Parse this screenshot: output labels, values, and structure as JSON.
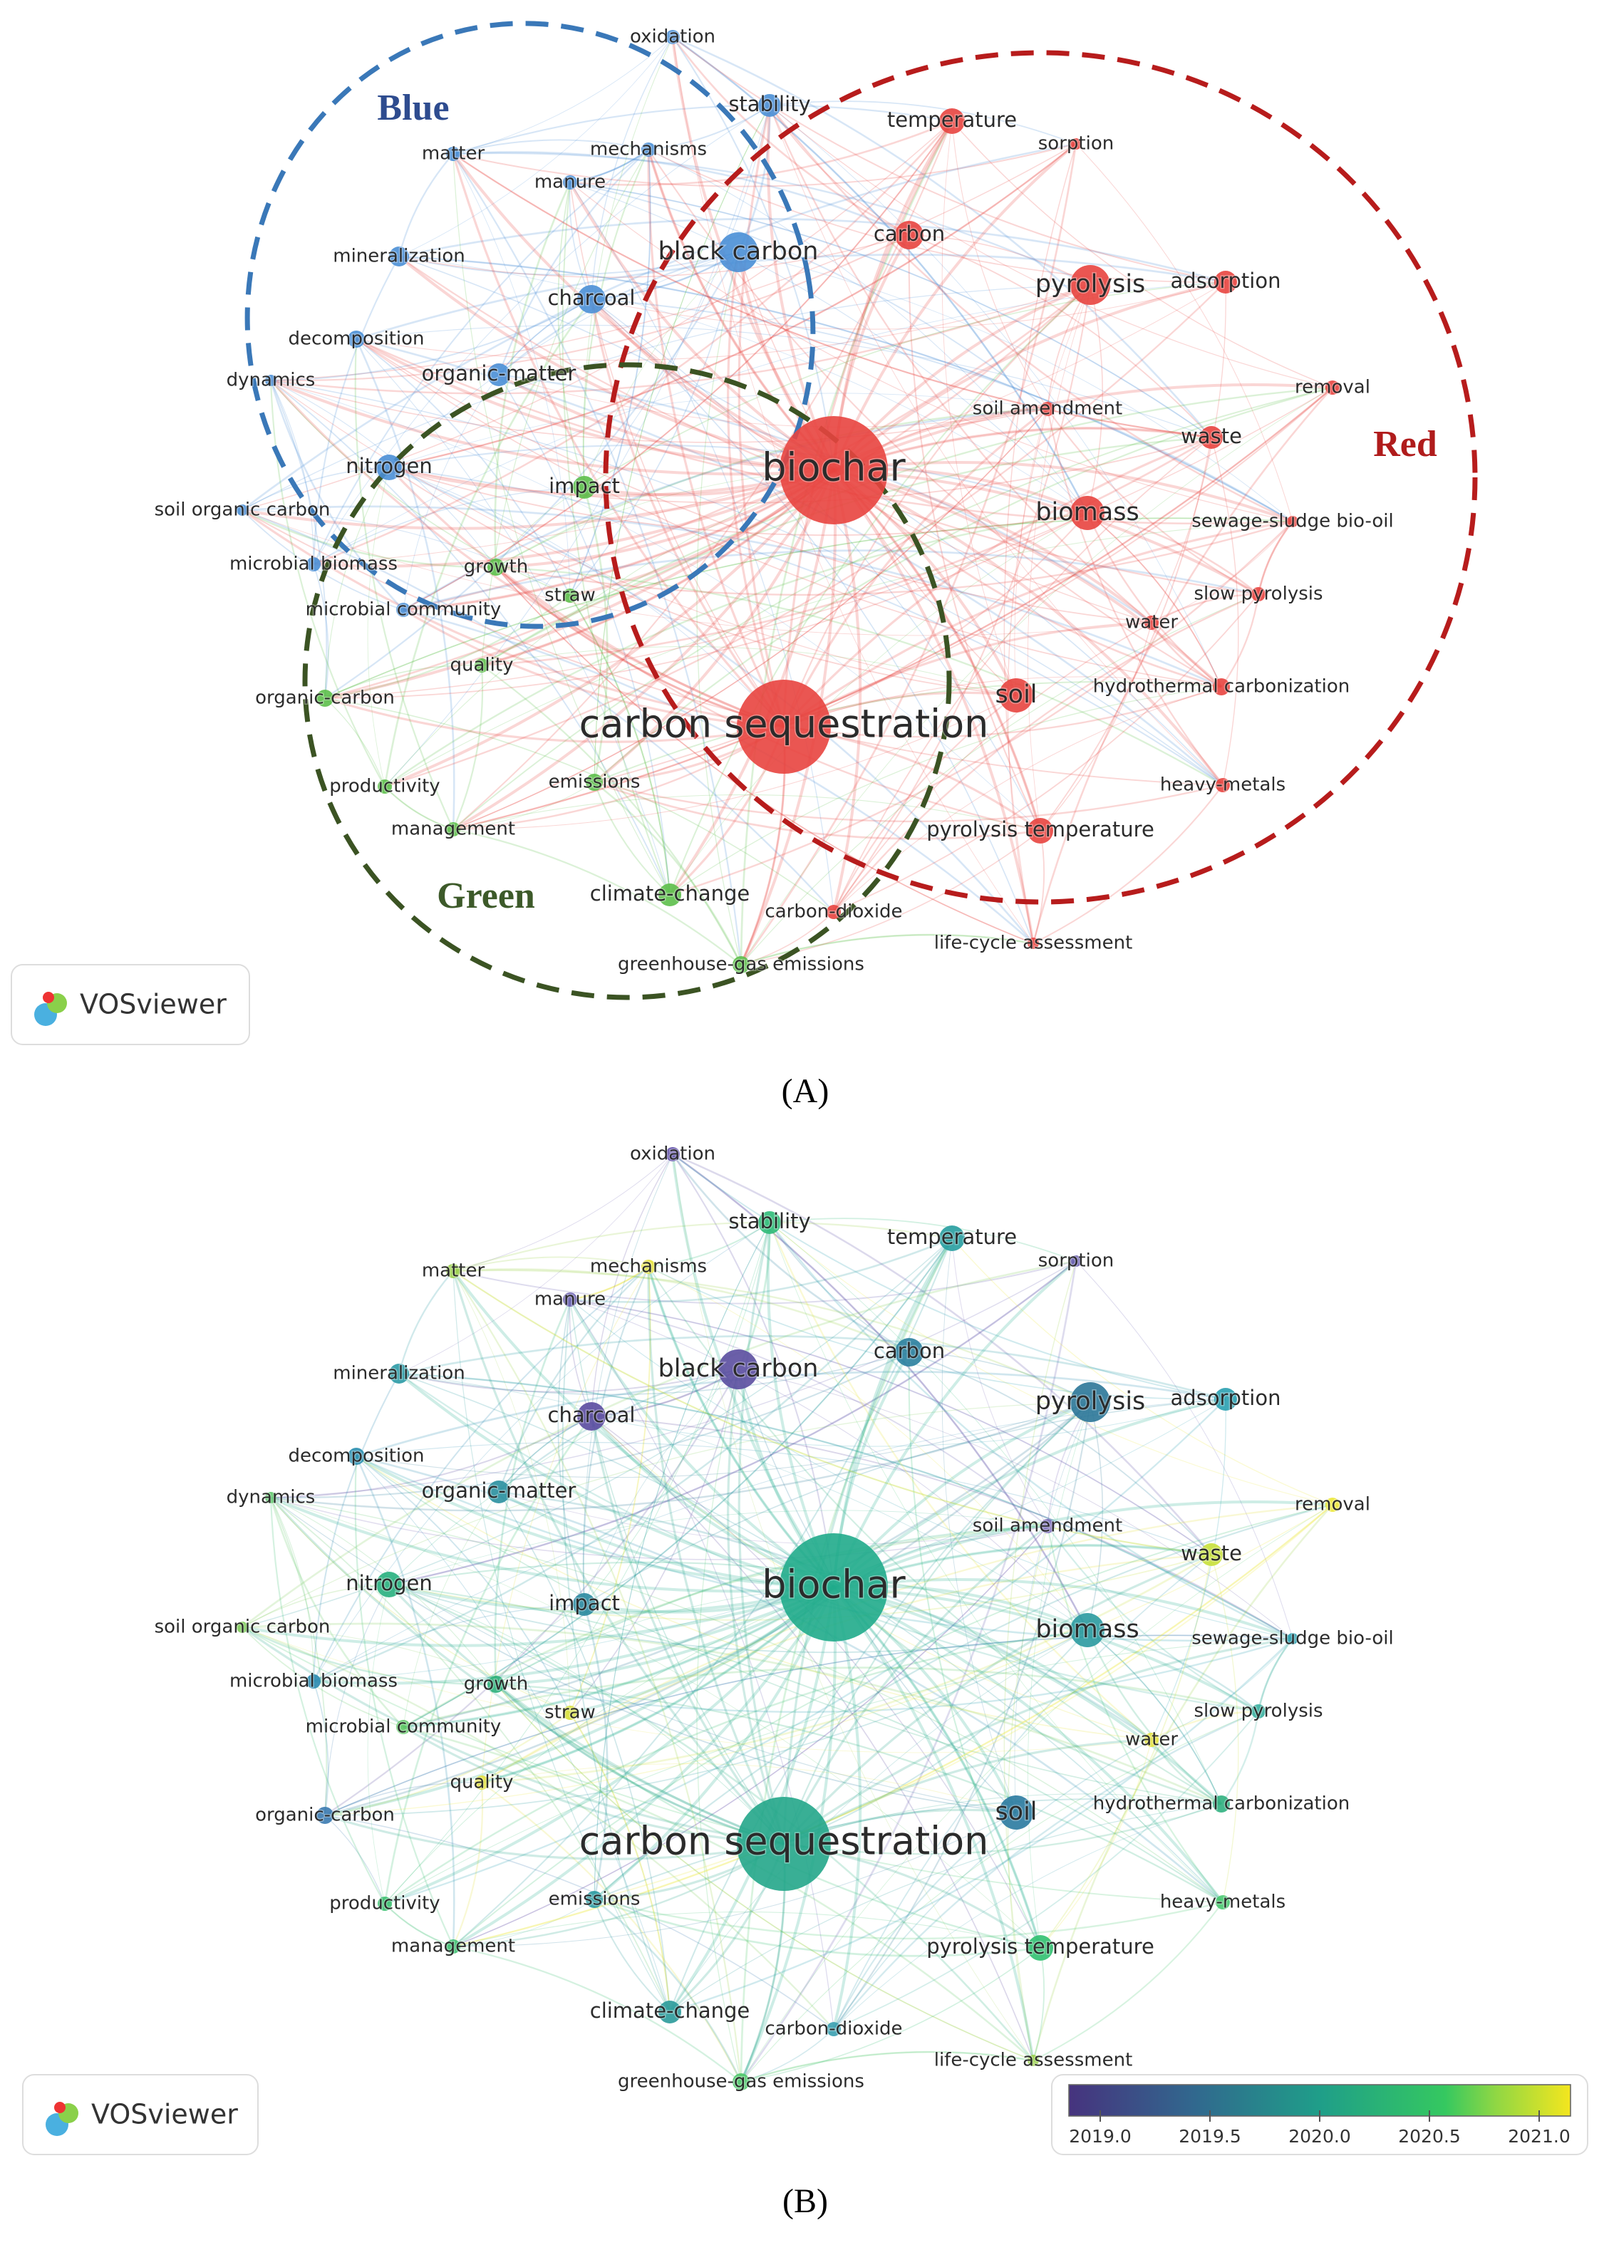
{
  "panel_a": {
    "label": "(A)",
    "logo": "VOSviewer",
    "clusters": [
      "Blue",
      "Red",
      "Green"
    ],
    "nodes": [
      "biochar",
      "carbon sequestration",
      "pyrolysis",
      "black carbon",
      "carbon",
      "temperature",
      "sorption",
      "stability",
      "oxidation",
      "mechanisms",
      "manure",
      "matter",
      "mineralization",
      "charcoal",
      "decomposition",
      "dynamics",
      "organic-matter",
      "nitrogen",
      "impact",
      "soil organic carbon",
      "microbial biomass",
      "growth",
      "straw",
      "microbial community",
      "quality",
      "organic-carbon",
      "productivity",
      "emissions",
      "management",
      "climate-change",
      "carbon-dioxide",
      "greenhouse-gas emissions",
      "life-cycle assessment",
      "pyrolysis temperature",
      "heavy-metals",
      "soil",
      "hydrothermal carbonization",
      "water",
      "slow pyrolysis",
      "sewage-sludge bio-oil",
      "biomass",
      "waste",
      "removal",
      "soil amendment",
      "adsorption"
    ]
  },
  "panel_b": {
    "label": "(B)",
    "logo": "VOSviewer",
    "nodes": [
      "biochar",
      "carbon sequestration",
      "pyrolysis",
      "black carbon",
      "carbon",
      "temperature",
      "sorption",
      "stability",
      "oxidation",
      "mechanisms",
      "manure",
      "matter",
      "mineralization",
      "charcoal",
      "decomposition",
      "dynamics",
      "organic-matter",
      "nitrogen",
      "impact",
      "soil organic carbon",
      "microbial biomass",
      "growth",
      "straw",
      "microbial community",
      "quality",
      "organic-carbon",
      "productivity",
      "emissions",
      "management",
      "climate-change",
      "carbon-dioxide",
      "greenhouse-gas emissions",
      "life-cycle assessment",
      "pyrolysis temperature",
      "heavy-metals",
      "soil",
      "hydrothermal carbonization",
      "water",
      "slow pyrolysis",
      "sewage-sludge bio-oil",
      "biomass",
      "waste",
      "removal",
      "soil amendment",
      "adsorption"
    ],
    "colorbar": {
      "ticks": [
        {
          "value": 2019,
          "label": "2019.0"
        },
        {
          "value": 2019.5,
          "label": "2019.5"
        },
        {
          "value": 2020,
          "label": "2020.0"
        },
        {
          "value": 2020.5,
          "label": "2020.5"
        },
        {
          "value": 2021,
          "label": "2021.0"
        }
      ]
    }
  }
}
